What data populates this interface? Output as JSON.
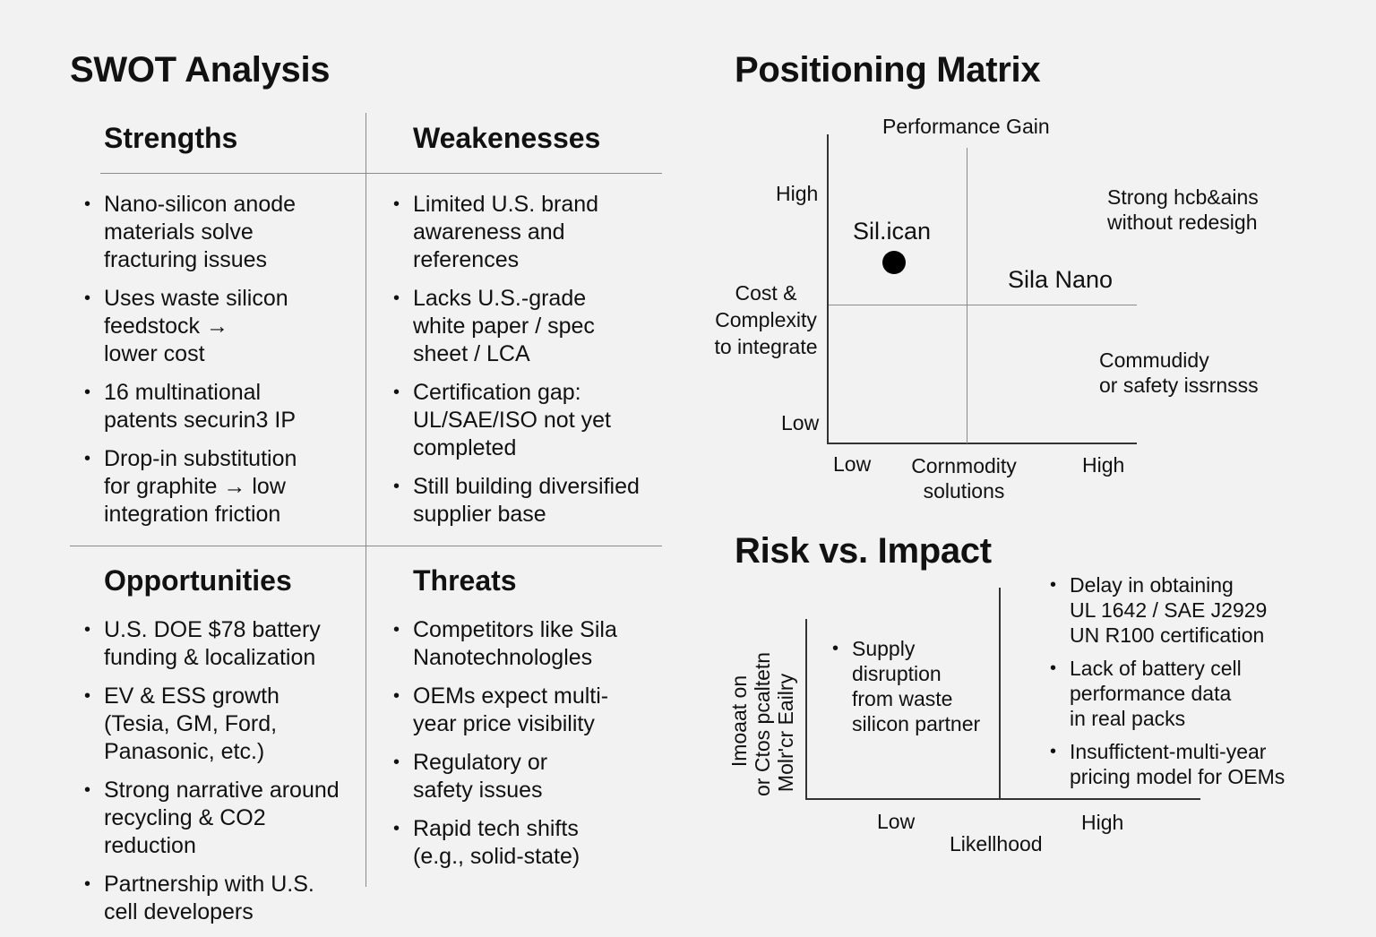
{
  "swot": {
    "title": "SWOT Analysis",
    "strengths": {
      "heading": "Strengths",
      "items": [
        "Nano-silicon anode\nmaterials solve\nfracturing issues",
        "Uses waste silicon\nfeedstock →\nlower cost",
        "16 multinational\npatents securin3 IP",
        "Drop-in substitution\nfor graphite → low\nintegration friction"
      ]
    },
    "weaknesses": {
      "heading": "Weakenesses",
      "items": [
        "Limited U.S. brand\nawareness and\nreferences",
        "Lacks U.S.-grade\nwhite paper / spec\nsheet / LCA",
        "Certification gap:\nUL/SAE/ISO not yet\ncompleted",
        "Still building diversified\nsupplier base"
      ]
    },
    "opportunities": {
      "heading": "Opportunities",
      "items": [
        "U.S. DOE $78 battery\nfunding & localization",
        "EV & ESS growth\n(Tesia, GM, Ford,\nPanasonic, etc.)",
        "Strong narrative around\nrecycling & CO2\nreduction",
        "Partnership with U.S.\ncell developers"
      ]
    },
    "threats": {
      "heading": "Threats",
      "items": [
        "Competitors like Sila\nNanotechnologles",
        "OEMs expect multi-\nyear price visibility",
        "Regulatory or\nsafety issues",
        "Rapid tech shifts\n(e.g., solid-state)"
      ]
    }
  },
  "positioning": {
    "title": "Positioning Matrix",
    "y_axis_title": "Performance Gain",
    "y_high": "High",
    "y_low": "Low",
    "left_label": "Cost &\nComplexity\nto integrate",
    "x_low": "Low",
    "x_mid": "Cornmodity\nsolutions",
    "x_high": "High",
    "point_label": "Sil.ican",
    "competitor_label": "Sila Nano",
    "top_right_note": "Strong hcb&ains\nwithout redesigh",
    "bottom_right_note": "Commudidy\nor safety issrnsss"
  },
  "risk": {
    "title": "Risk vs. Impact",
    "y_label_lines": [
      "Imoaat on",
      "or Ctos pcaltetn",
      "Molr'cr Eailry"
    ],
    "x_title": "Likellhood",
    "x_low": "Low",
    "x_high": "High",
    "left_items": [
      "Supply\ndisruption\nfrom waste\nsilicon partner"
    ],
    "right_items": [
      "Delay in obtaining\nUL 1642 / SAE J2929\nUN R100 certification",
      "Lack of battery cell\nperformance data\nin real packs",
      "Insuffictent-multi-year\npricing model for OEMs"
    ]
  }
}
